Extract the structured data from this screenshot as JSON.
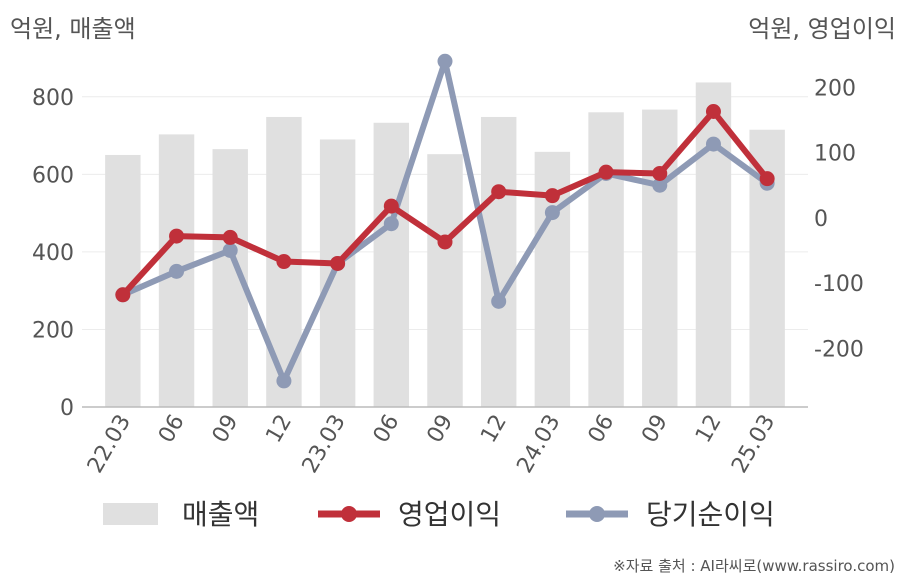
{
  "chart_data": {
    "type": "bar+line",
    "left_axis_label": "억원, 매출액",
    "right_axis_label": "억원, 영업이익",
    "categories": [
      "22.03",
      "06",
      "09",
      "12",
      "23.03",
      "06",
      "09",
      "12",
      "24.03",
      "06",
      "09",
      "12",
      "25.03"
    ],
    "left_ylim": [
      0,
      900
    ],
    "left_ticks": [
      0,
      200,
      400,
      600,
      800
    ],
    "right_ylim": [
      -290,
      245
    ],
    "right_ticks": [
      -200,
      -100,
      0,
      100,
      200
    ],
    "grid": true,
    "series": [
      {
        "name": "매출액",
        "kind": "bar",
        "axis": "left",
        "color": "#e0e0e0",
        "values": [
          650,
          703,
          665,
          748,
          690,
          733,
          652,
          748,
          658,
          760,
          767,
          837,
          715
        ]
      },
      {
        "name": "영업이익",
        "kind": "line",
        "axis": "right",
        "color": "#c0303a",
        "values": [
          -118,
          -28,
          -30,
          -67,
          -70,
          18,
          -37,
          40,
          34,
          70,
          68,
          163,
          60
        ]
      },
      {
        "name": "당기순이익",
        "kind": "line",
        "axis": "right",
        "color": "#8e9ab5",
        "values": [
          -118,
          -82,
          -50,
          -250,
          -70,
          -9,
          240,
          -128,
          8,
          68,
          50,
          113,
          53
        ]
      }
    ],
    "legend_position": "bottom"
  },
  "source_text": "※자료 출처 : AI라씨로(www.rassiro.com)"
}
